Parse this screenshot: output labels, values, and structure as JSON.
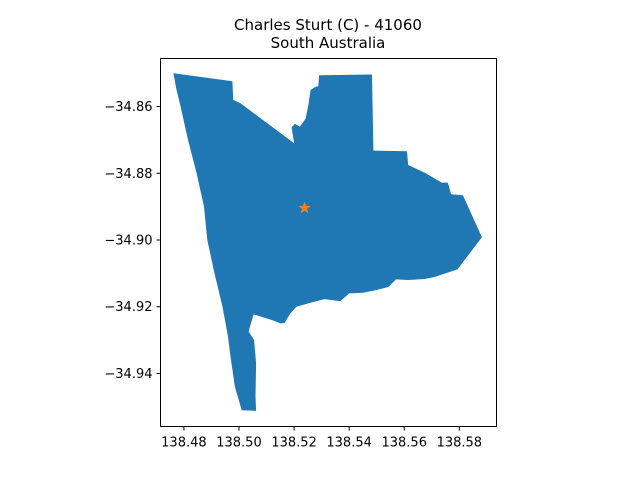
{
  "title": {
    "line1": "Charles Sturt (C) - 41060",
    "line2": "South Australia"
  },
  "colors": {
    "region_fill": "#1f77b4",
    "marker": "#ff7f0e",
    "axes": "#000000",
    "background": "#ffffff"
  },
  "chart_data": {
    "type": "map",
    "title": "Charles Sturt (C) - 41060\nSouth Australia",
    "xlim": [
      138.4715,
      138.5935
    ],
    "ylim": [
      -34.9559,
      -34.8456
    ],
    "x_ticks": [
      138.48,
      138.5,
      138.52,
      138.54,
      138.56,
      138.58
    ],
    "x_tick_labels": [
      "138.48",
      "138.50",
      "138.52",
      "138.54",
      "138.56",
      "138.58"
    ],
    "y_ticks": [
      -34.86,
      -34.88,
      -34.9,
      -34.92,
      -34.94
    ],
    "y_tick_labels": [
      "−34.86",
      "−34.88",
      "−34.90",
      "−34.92",
      "−34.94"
    ],
    "region": {
      "name": "Charles Sturt (C) - 41060",
      "outline_lonlat": [
        [
          138.4762,
          -34.85
        ],
        [
          138.4976,
          -34.8524
        ],
        [
          138.4979,
          -34.858
        ],
        [
          138.5005,
          -34.859
        ],
        [
          138.52,
          -34.871
        ],
        [
          138.5191,
          -34.8662
        ],
        [
          138.5203,
          -34.8652
        ],
        [
          138.5221,
          -34.866
        ],
        [
          138.5242,
          -34.8636
        ],
        [
          138.5252,
          -34.8595
        ],
        [
          138.526,
          -34.855
        ],
        [
          138.528,
          -34.854
        ],
        [
          138.5288,
          -34.854
        ],
        [
          138.5291,
          -34.8506
        ],
        [
          138.5483,
          -34.8504
        ],
        [
          138.5488,
          -34.8732
        ],
        [
          138.561,
          -34.8734
        ],
        [
          138.5614,
          -34.8775
        ],
        [
          138.5678,
          -34.88
        ],
        [
          138.5736,
          -34.8828
        ],
        [
          138.5758,
          -34.8828
        ],
        [
          138.577,
          -34.8863
        ],
        [
          138.5813,
          -34.8866
        ],
        [
          138.5828,
          -34.8893
        ],
        [
          138.5882,
          -34.8992
        ],
        [
          138.5793,
          -34.9088
        ],
        [
          138.571,
          -34.9111
        ],
        [
          138.5675,
          -34.9117
        ],
        [
          138.5614,
          -34.912
        ],
        [
          138.557,
          -34.9118
        ],
        [
          138.5542,
          -34.9141
        ],
        [
          138.55,
          -34.915
        ],
        [
          138.545,
          -34.9158
        ],
        [
          138.54,
          -34.916
        ],
        [
          138.5368,
          -34.9183
        ],
        [
          138.531,
          -34.9177
        ],
        [
          138.526,
          -34.9188
        ],
        [
          138.5208,
          -34.92
        ],
        [
          138.5185,
          -34.9222
        ],
        [
          138.5165,
          -34.9249
        ],
        [
          138.515,
          -34.925
        ],
        [
          138.5123,
          -34.9241
        ],
        [
          138.5053,
          -34.9223
        ],
        [
          138.5035,
          -34.9274
        ],
        [
          138.5055,
          -34.93
        ],
        [
          138.5062,
          -34.937
        ],
        [
          138.506,
          -34.947
        ],
        [
          138.5062,
          -34.9512
        ],
        [
          138.501,
          -34.951
        ],
        [
          138.4985,
          -34.944
        ],
        [
          138.4969,
          -34.935
        ],
        [
          138.496,
          -34.929
        ],
        [
          138.494,
          -34.92
        ],
        [
          138.4911,
          -34.91
        ],
        [
          138.4885,
          -34.9
        ],
        [
          138.4873,
          -34.89
        ],
        [
          138.4846,
          -34.88
        ],
        [
          138.4815,
          -34.87
        ],
        [
          138.4788,
          -34.86
        ],
        [
          138.4773,
          -34.855
        ]
      ]
    },
    "marker": {
      "shape": "star",
      "lon": 138.5238,
      "lat": -34.8904
    }
  }
}
